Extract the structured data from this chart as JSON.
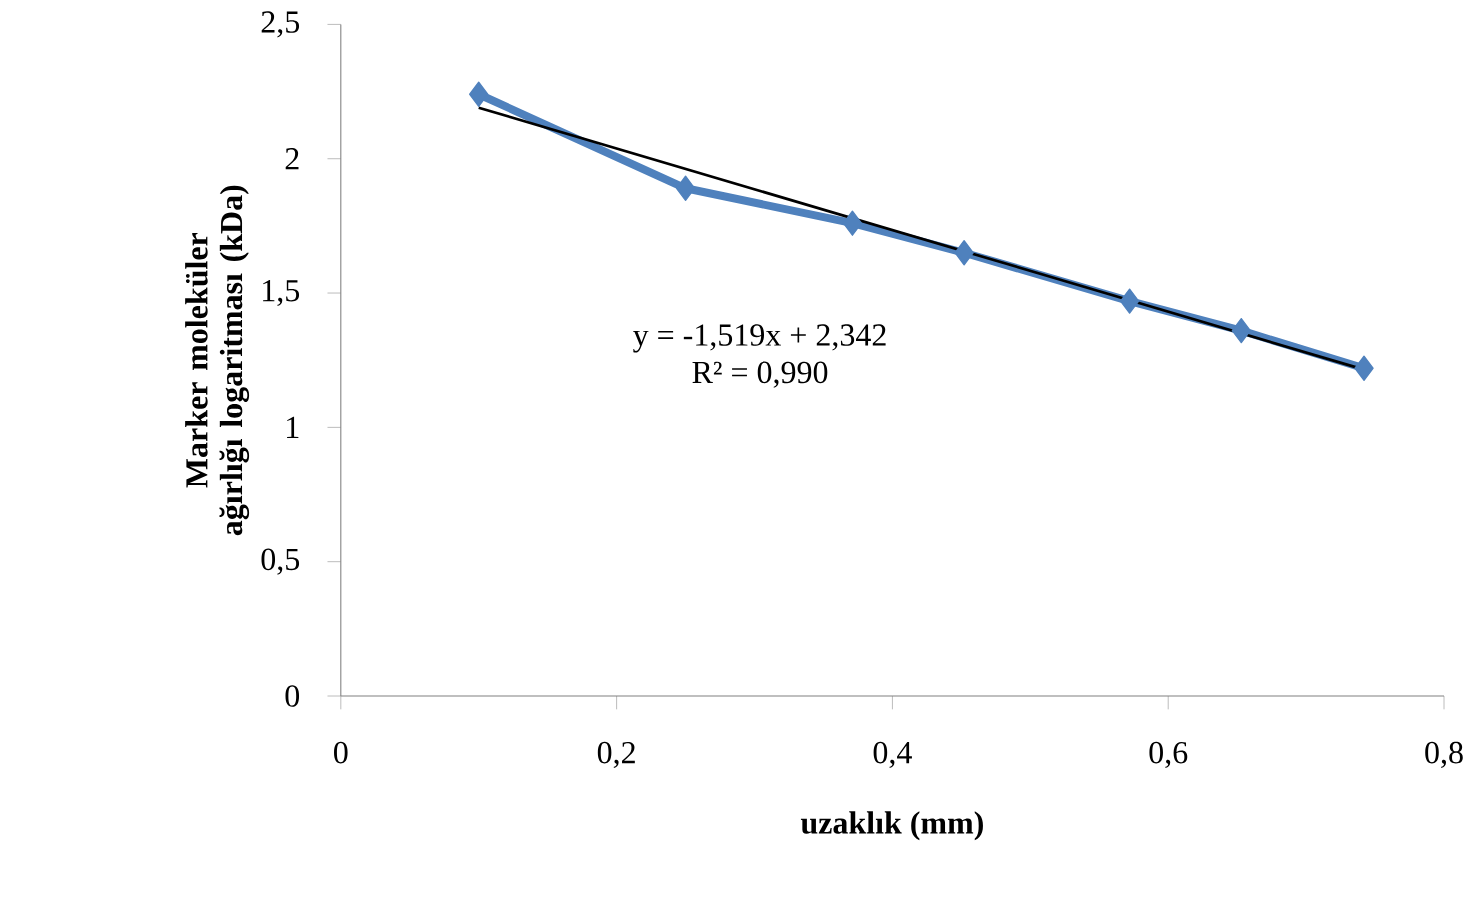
{
  "chart_data": {
    "type": "line",
    "xlabel": "uzaklık (mm)",
    "ylabel": "Marker moleküler ağırlığı logaritması (kDa)",
    "series": [
      {
        "color": "#4f81bd",
        "marker": "diamond",
        "x": [
          0.1,
          0.25,
          0.371,
          0.452,
          0.572,
          0.653,
          0.742
        ],
        "values": [
          2.24,
          1.89,
          1.76,
          1.65,
          1.47,
          1.36,
          1.22
        ]
      },
      {
        "type": "line",
        "color": "#000000",
        "marker": "none",
        "x": [
          0.1,
          0.742
        ],
        "values": [
          2.19,
          1.215
        ]
      }
    ],
    "xlim": [
      0,
      0.8
    ],
    "xticks": [
      0,
      {
        "value": 0.2,
        "label": "0,2"
      },
      {
        "value": 0.4,
        "label": "0,4"
      },
      {
        "value": 0.6,
        "label": "0,6"
      },
      {
        "value": 0.8,
        "label": "0,8"
      }
    ],
    "ylim": [
      0,
      2.5
    ],
    "yticks": [
      0,
      {
        "value": 0.5,
        "label": "0,5"
      },
      1,
      {
        "value": 1.5,
        "label": "1,5"
      },
      2,
      {
        "value": 2.5,
        "label": "2,5"
      }
    ],
    "annotations": [
      "y = -1,519x + 2,342",
      "R² = 0,990"
    ]
  }
}
